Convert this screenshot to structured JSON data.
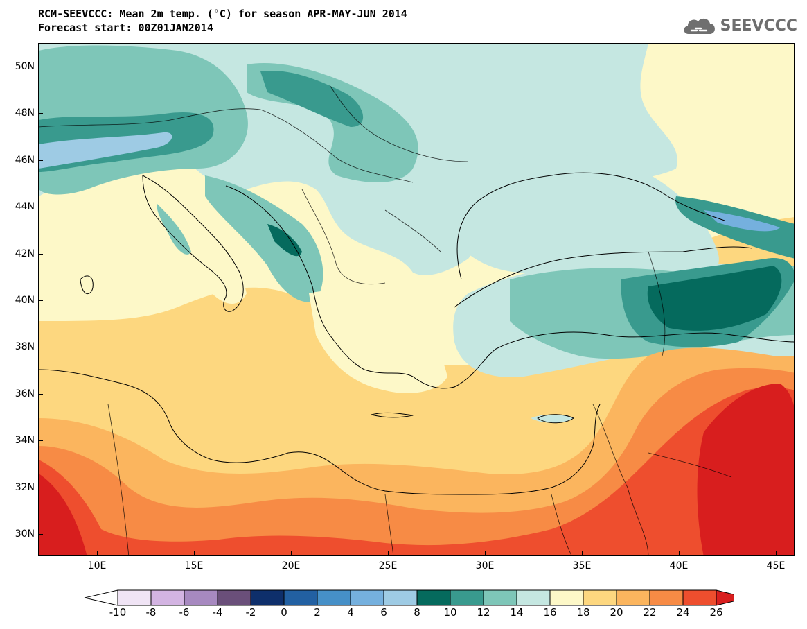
{
  "title": {
    "line1": "RCM-SEEVCCC: Mean 2m temp. (°C) for season APR-MAY-JUN 2014",
    "line2": "Forecast start: 00Z01JAN2014"
  },
  "logo": {
    "text": "SEEVCCC",
    "icon": "cloud-icon",
    "color": "#6f6f6f"
  },
  "map": {
    "lat_labels": [
      "50N",
      "48N",
      "46N",
      "44N",
      "42N",
      "40N",
      "38N",
      "36N",
      "34N",
      "32N",
      "30N"
    ],
    "lon_labels": [
      "10E",
      "15E",
      "20E",
      "25E",
      "30E",
      "35E",
      "40E",
      "45E"
    ],
    "lat_range": [
      29,
      51
    ],
    "lon_range": [
      7,
      46
    ]
  },
  "colorbar": {
    "labels": [
      "-10",
      "-8",
      "-6",
      "-4",
      "-2",
      "0",
      "2",
      "4",
      "6",
      "8",
      "10",
      "12",
      "14",
      "16",
      "18",
      "20",
      "22",
      "24",
      "26"
    ],
    "colors": [
      "#ffffff",
      "#f0e4f5",
      "#d3b4e2",
      "#a789c0",
      "#6a4f7a",
      "#0e2f6b",
      "#2260a2",
      "#4690c8",
      "#75b0de",
      "#9ecbe4",
      "#056a5d",
      "#399a8e",
      "#7ec6b8",
      "#c5e7e1",
      "#fdf8c8",
      "#fdd77f",
      "#fbb55e",
      "#f78b45",
      "#ee4e2e",
      "#d81e1e"
    ]
  },
  "field_colors": {
    "t10": "#056a5d",
    "t12": "#399a8e",
    "t14": "#7ec6b8",
    "t16": "#c5e7e1",
    "t18": "#fdf8c8",
    "t20": "#fdd77f",
    "t22": "#fbb55e",
    "t24": "#f78b45",
    "t26": "#ee4e2e",
    "t28": "#d81e1e",
    "t6": "#75b0de",
    "t8": "#9ecbe4",
    "t4": "#4690c8"
  }
}
